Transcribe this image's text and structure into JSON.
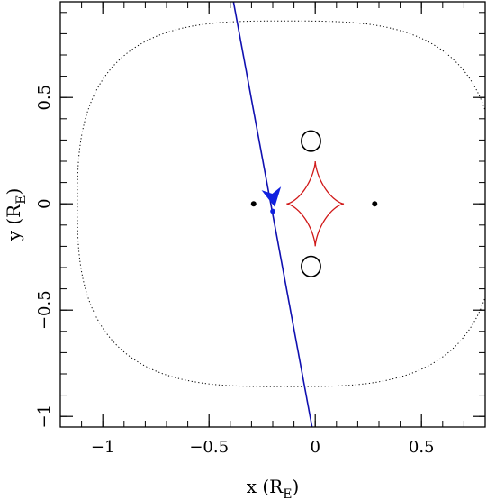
{
  "chart_data": {
    "type": "scatter",
    "title": "",
    "xlabel": "x (R",
    "xlabel_sub": "E",
    "xlabel_close": ")",
    "ylabel": "y (R",
    "ylabel_sub": "E",
    "ylabel_close": ")",
    "xlim": [
      -1.2,
      0.8
    ],
    "ylim": [
      -1.05,
      0.95
    ],
    "xticks": [
      {
        "value": -1,
        "label": "−1"
      },
      {
        "value": -0.5,
        "label": "−0.5"
      },
      {
        "value": 0,
        "label": "0"
      },
      {
        "value": 0.5,
        "label": "0.5"
      }
    ],
    "yticks": [
      {
        "value": -1,
        "label": "−1"
      },
      {
        "value": -0.5,
        "label": "−0.5"
      },
      {
        "value": 0,
        "label": "0"
      },
      {
        "value": 0.5,
        "label": "0.5"
      }
    ],
    "x_minor_step": 0.1,
    "y_minor_step": 0.1,
    "lenses": [
      {
        "x": -0.29,
        "y": 0.0
      },
      {
        "x": 0.28,
        "y": 0.0
      }
    ],
    "source_trajectory": {
      "color": "#1010b0",
      "points": [
        [
          -0.385,
          0.95
        ],
        [
          -0.015,
          -1.05
        ]
      ]
    },
    "trajectory_arrow": {
      "x": -0.2,
      "y": 0.035,
      "color": "#1020e0"
    },
    "source_position": {
      "x": -0.2,
      "y": -0.035,
      "color": "#1020e0"
    },
    "central_caustic": {
      "color": "#d01818",
      "center": [
        0.0,
        0.0
      ],
      "half_width": 0.135,
      "half_height": 0.2
    },
    "planetary_caustics": [
      {
        "x": -0.02,
        "y": 0.295,
        "rx": 0.045,
        "ry": 0.048
      },
      {
        "x": -0.02,
        "y": -0.295,
        "rx": 0.045,
        "ry": 0.048
      }
    ],
    "outer_critical_curve": {
      "style": "dotted",
      "x_left": -1.12,
      "x_right": 0.85,
      "y_top": 0.86,
      "y_bottom": -0.86
    }
  }
}
